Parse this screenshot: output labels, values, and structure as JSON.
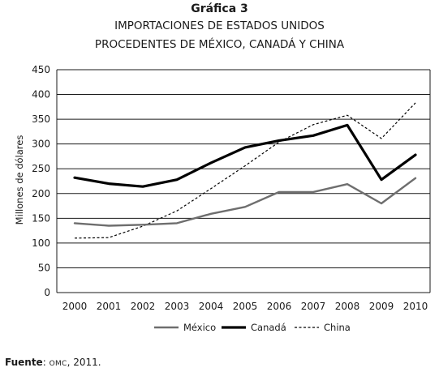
{
  "chart_data": {
    "type": "line",
    "title": "Gráfica 3",
    "subtitle": [
      "IMPORTACIONES DE ESTADOS UNIDOS",
      "PROCEDENTES DE MÉXICO, CANADÁ Y CHINA"
    ],
    "xlabel": "",
    "ylabel": "Millones de dólares",
    "categories": [
      "2000",
      "2001",
      "2002",
      "2003",
      "2004",
      "2005",
      "2006",
      "2007",
      "2008",
      "2009",
      "2010"
    ],
    "ylim": [
      0,
      450
    ],
    "yticks": [
      0,
      50,
      100,
      150,
      200,
      250,
      300,
      350,
      400,
      450
    ],
    "grid": "horizontal",
    "legend_position": "bottom",
    "series": [
      {
        "name": "México",
        "values": [
          140,
          135,
          137,
          140,
          159,
          173,
          203,
          203,
          219,
          180,
          231
        ],
        "color": "#6e6e6e",
        "style": "solid"
      },
      {
        "name": "Canadá",
        "values": [
          232,
          220,
          214,
          228,
          262,
          293,
          307,
          317,
          338,
          228,
          278
        ],
        "color": "#000000",
        "style": "solid-thick"
      },
      {
        "name": "China",
        "values": [
          110,
          111,
          134,
          165,
          210,
          256,
          304,
          339,
          358,
          311,
          383
        ],
        "color": "#000000",
        "style": "dashed"
      }
    ]
  },
  "source": {
    "label": "Fuente",
    "org": "OMC",
    "year": ", 2011."
  }
}
